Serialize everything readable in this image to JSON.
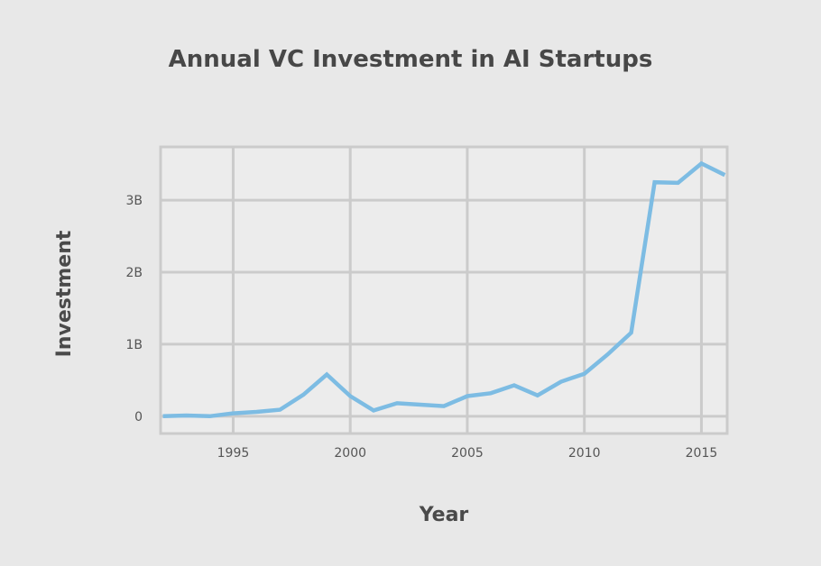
{
  "chart_data": {
    "type": "line",
    "title": "Annual VC Investment in AI Startups",
    "xlabel": "Year",
    "ylabel": "Investment",
    "xlim": [
      1991.9,
      2016.1
    ],
    "ylim": [
      -0.24,
      3.74
    ],
    "x_ticks": [
      1995,
      2000,
      2005,
      2010,
      2015
    ],
    "x_tick_labels": [
      "1995",
      "2000",
      "2005",
      "2010",
      "2015"
    ],
    "y_ticks": [
      0,
      1,
      2,
      3
    ],
    "y_tick_labels": [
      "0",
      "1B",
      "2B",
      "3B"
    ],
    "y_unit": "billions USD",
    "grid": true,
    "colors": {
      "line": "#7dbce3",
      "grid": "#cbcbcb",
      "plot_bg": "#ececec",
      "page_bg": "#e8e8e8"
    },
    "series": [
      {
        "x": [
          1992,
          1993,
          1994,
          1995,
          1996,
          1997,
          1998,
          1999,
          2000,
          2001,
          2002,
          2003,
          2004,
          2005,
          2006,
          2007,
          2008,
          2009,
          2010,
          2011,
          2012,
          2013,
          2014,
          2015,
          2016
        ],
        "y": [
          0.0,
          0.01,
          0.0,
          0.04,
          0.06,
          0.09,
          0.3,
          0.58,
          0.28,
          0.08,
          0.18,
          0.16,
          0.14,
          0.28,
          0.32,
          0.43,
          0.29,
          0.48,
          0.59,
          0.86,
          1.16,
          3.25,
          3.24,
          3.51,
          3.35
        ]
      }
    ]
  }
}
